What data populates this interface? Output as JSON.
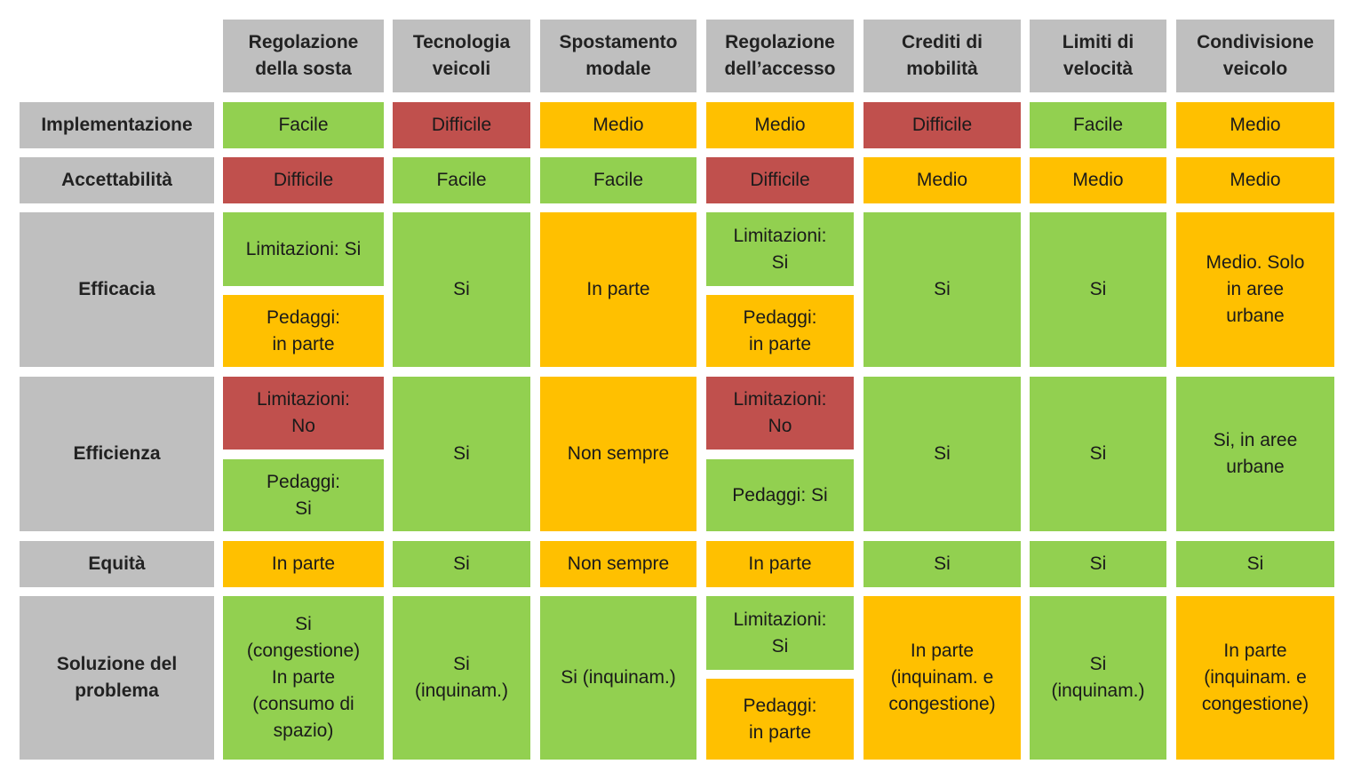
{
  "colors": {
    "header": "#bfbfbf",
    "green": "#92d050",
    "red": "#c0504d",
    "orange": "#ffc000"
  },
  "columns": [
    "Regolazione\ndella sosta",
    "Tecnologia\nveicoli",
    "Spostamento\nmodale",
    "Regolazione\ndell’accesso",
    "Crediti di\nmobilità",
    "Limiti di\nvelocità",
    "Condivisione\nveicolo"
  ],
  "rows": {
    "implementazione": {
      "label": "Implementazione",
      "cells": [
        {
          "text": "Facile",
          "color": "green"
        },
        {
          "text": "Difficile",
          "color": "red"
        },
        {
          "text": "Medio",
          "color": "orange"
        },
        {
          "text": "Medio",
          "color": "orange"
        },
        {
          "text": "Difficile",
          "color": "red"
        },
        {
          "text": "Facile",
          "color": "green"
        },
        {
          "text": "Medio",
          "color": "orange"
        }
      ]
    },
    "accettabilita": {
      "label": "Accettabilità",
      "cells": [
        {
          "text": "Difficile",
          "color": "red"
        },
        {
          "text": "Facile",
          "color": "green"
        },
        {
          "text": "Facile",
          "color": "green"
        },
        {
          "text": "Difficile",
          "color": "red"
        },
        {
          "text": "Medio",
          "color": "orange"
        },
        {
          "text": "Medio",
          "color": "orange"
        },
        {
          "text": "Medio",
          "color": "orange"
        }
      ]
    },
    "efficacia": {
      "label": "Efficacia",
      "sosta_top": {
        "text": "Limitazioni: Si",
        "color": "green"
      },
      "sosta_bottom": {
        "text": "Pedaggi:\nin parte",
        "color": "orange"
      },
      "tecnologia": {
        "text": "Si",
        "color": "green"
      },
      "spostamento": {
        "text": "In parte",
        "color": "orange"
      },
      "accesso_top": {
        "text": "Limitazioni:\nSi",
        "color": "green"
      },
      "accesso_bottom": {
        "text": "Pedaggi:\nin parte",
        "color": "orange"
      },
      "crediti": {
        "text": "Si",
        "color": "green"
      },
      "limiti": {
        "text": "Si",
        "color": "green"
      },
      "condivisione": {
        "text": "Medio. Solo\nin aree\nurbane",
        "color": "orange"
      }
    },
    "efficienza": {
      "label": "Efficienza",
      "sosta_top": {
        "text": "Limitazioni:\nNo",
        "color": "red"
      },
      "sosta_bottom": {
        "text": "Pedaggi:\nSi",
        "color": "green"
      },
      "tecnologia": {
        "text": "Si",
        "color": "green"
      },
      "spostamento": {
        "text": "Non sempre",
        "color": "orange"
      },
      "accesso_top": {
        "text": "Limitazioni:\nNo",
        "color": "red"
      },
      "accesso_bottom": {
        "text": "Pedaggi: Si",
        "color": "green"
      },
      "crediti": {
        "text": "Si",
        "color": "green"
      },
      "limiti": {
        "text": "Si",
        "color": "green"
      },
      "condivisione": {
        "text": "Si, in aree\nurbane",
        "color": "green"
      }
    },
    "equita": {
      "label": "Equità",
      "cells": [
        {
          "text": "In parte",
          "color": "orange"
        },
        {
          "text": "Si",
          "color": "green"
        },
        {
          "text": "Non sempre",
          "color": "orange"
        },
        {
          "text": "In parte",
          "color": "orange"
        },
        {
          "text": "Si",
          "color": "green"
        },
        {
          "text": "Si",
          "color": "green"
        },
        {
          "text": "Si",
          "color": "green"
        }
      ]
    },
    "soluzione": {
      "label": "Soluzione del\nproblema",
      "sosta": {
        "text": "Si\n(congestione)\nIn parte\n(consumo di\nspazio)",
        "color": "green"
      },
      "tecnologia": {
        "text": "Si\n(inquinam.)",
        "color": "green"
      },
      "spostamento": {
        "text": "Si (inquinam.)",
        "color": "green"
      },
      "accesso_top": {
        "text": "Limitazioni:\nSi",
        "color": "green"
      },
      "accesso_bottom": {
        "text": "Pedaggi:\nin parte",
        "color": "orange"
      },
      "crediti": {
        "text": "In parte\n(inquinam. e\ncongestione)",
        "color": "orange"
      },
      "limiti": {
        "text": "Si\n(inquinam.)",
        "color": "green"
      },
      "condivisione": {
        "text": "In parte\n(inquinam. e\ncongestione)",
        "color": "orange"
      }
    }
  }
}
